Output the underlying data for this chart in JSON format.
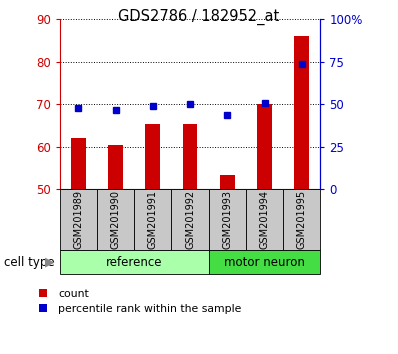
{
  "title": "GDS2786 / 182952_at",
  "samples": [
    "GSM201989",
    "GSM201990",
    "GSM201991",
    "GSM201992",
    "GSM201993",
    "GSM201994",
    "GSM201995"
  ],
  "count_values": [
    62,
    60.5,
    65.5,
    65.5,
    53.5,
    70,
    86
  ],
  "percentile_values": [
    48,
    47,
    49,
    50,
    44,
    51,
    74
  ],
  "ylim_left": [
    50,
    90
  ],
  "ylim_right": [
    0,
    100
  ],
  "yticks_left": [
    50,
    60,
    70,
    80,
    90
  ],
  "yticks_right": [
    0,
    25,
    50,
    75,
    100
  ],
  "yticklabels_right": [
    "0",
    "25",
    "50",
    "75",
    "100%"
  ],
  "bar_bottom": 50,
  "bar_color": "#cc0000",
  "dot_color": "#0000cc",
  "cell_type_label": "cell type",
  "legend_count": "count",
  "legend_percentile": "percentile rank within the sample",
  "bg_xtick": "#c8c8c8",
  "ref_color": "#aaffaa",
  "motor_color": "#44dd44",
  "group_info": [
    {
      "start": 0,
      "end": 3,
      "label": "reference",
      "color": "#aaffaa"
    },
    {
      "start": 4,
      "end": 6,
      "label": "motor neuron",
      "color": "#44dd44"
    }
  ]
}
